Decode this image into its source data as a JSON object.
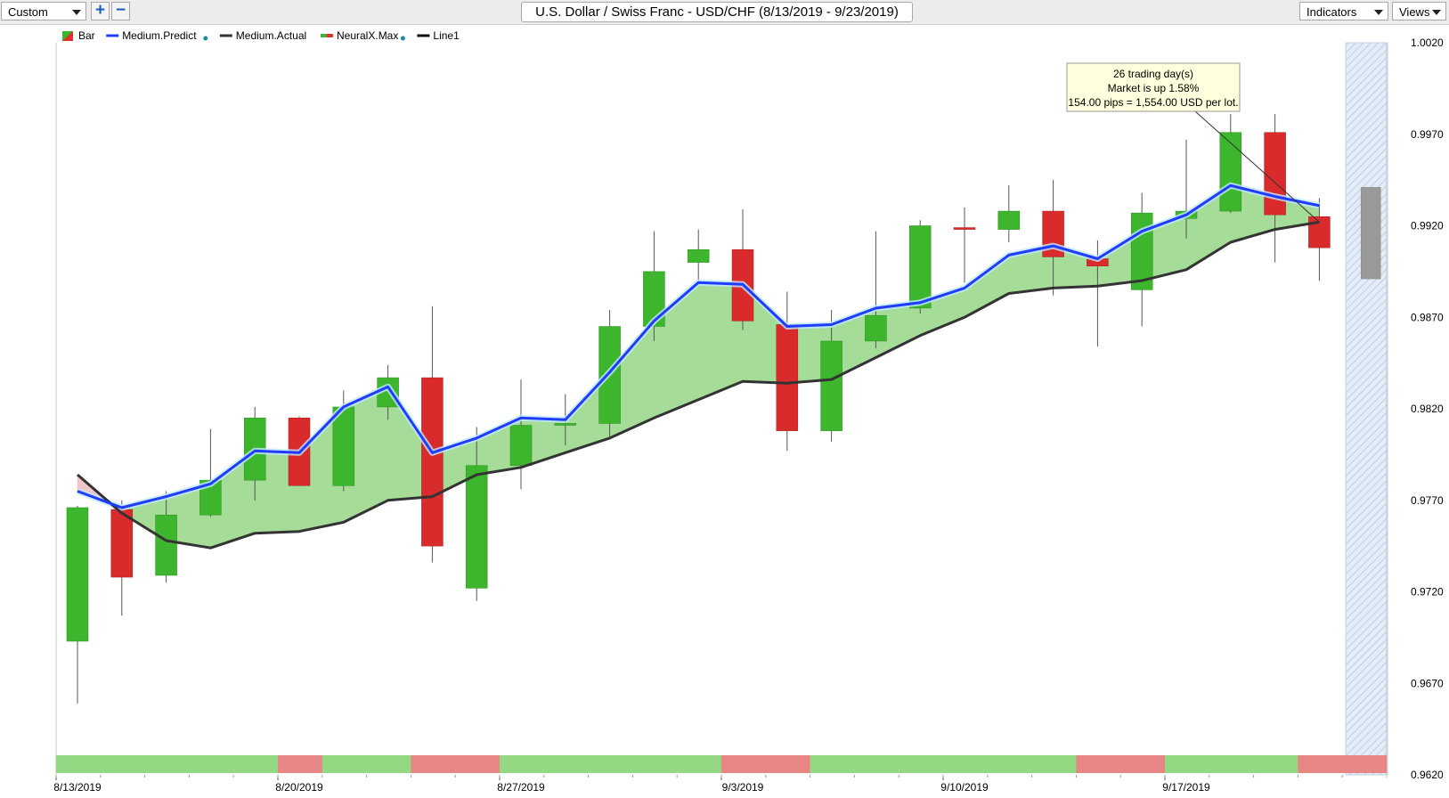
{
  "toolbar": {
    "period_select": "Custom",
    "zoom_in_label": "+",
    "zoom_out_label": "−",
    "title": "U.S. Dollar / Swiss Franc - USD/CHF (8/13/2019 - 9/23/2019)",
    "indicators_label": "Indicators",
    "views_label": "Views"
  },
  "legend": [
    {
      "label": "Bar",
      "color": "#e03030"
    },
    {
      "label": "Medium.Predict",
      "color": "#1f3cff"
    },
    {
      "label": "Medium.Actual",
      "color": "#333333"
    },
    {
      "label": "NeuralX.Max",
      "color": "#e03030"
    },
    {
      "label": "Line1",
      "color": "#111111"
    }
  ],
  "annotation": {
    "line1": "26 trading day(s)",
    "line2": "Market is up 1.58%",
    "line3": "154.00 pips = 1,554.00 USD per lot."
  },
  "chart_data": {
    "type": "candlestick",
    "ylim": [
      0.962,
      1.002
    ],
    "y_ticks": [
      "1.0020",
      "0.9970",
      "0.9920",
      "0.9870",
      "0.9820",
      "0.9770",
      "0.9720",
      "0.9670",
      "0.9620"
    ],
    "x_labels": [
      {
        "index": 0,
        "label": "8/13/2019"
      },
      {
        "index": 5,
        "label": "8/20/2019"
      },
      {
        "index": 10,
        "label": "8/27/2019"
      },
      {
        "index": 15,
        "label": "9/3/2019"
      },
      {
        "index": 20,
        "label": "9/10/2019"
      },
      {
        "index": 25,
        "label": "9/17/2019"
      }
    ],
    "colors": {
      "up": "#3db52c",
      "down": "#d92b2b",
      "band": "#a5dc97",
      "band_neg": "#f0c6c6",
      "predict": "#1f3cff",
      "actual": "#333333",
      "next_day": "#999999"
    },
    "candles": [
      {
        "date": "8/13/2019",
        "open": 0.9693,
        "high": 0.9767,
        "low": 0.9659,
        "close": 0.9766
      },
      {
        "date": "8/14/2019",
        "open": 0.9765,
        "high": 0.977,
        "low": 0.9707,
        "close": 0.9728
      },
      {
        "date": "8/15/2019",
        "open": 0.9729,
        "high": 0.9775,
        "low": 0.9725,
        "close": 0.9762
      },
      {
        "date": "8/16/2019",
        "open": 0.9762,
        "high": 0.9809,
        "low": 0.9761,
        "close": 0.9781
      },
      {
        "date": "8/19/2019",
        "open": 0.9781,
        "high": 0.9821,
        "low": 0.977,
        "close": 0.9815
      },
      {
        "date": "8/20/2019",
        "open": 0.9815,
        "high": 0.9816,
        "low": 0.9778,
        "close": 0.9778
      },
      {
        "date": "8/21/2019",
        "open": 0.9778,
        "high": 0.983,
        "low": 0.9775,
        "close": 0.9821
      },
      {
        "date": "8/22/2019",
        "open": 0.9821,
        "high": 0.9844,
        "low": 0.9814,
        "close": 0.9837
      },
      {
        "date": "8/23/2019",
        "open": 0.9837,
        "high": 0.9876,
        "low": 0.9736,
        "close": 0.9745
      },
      {
        "date": "8/26/2019",
        "open": 0.9722,
        "high": 0.981,
        "low": 0.9715,
        "close": 0.9789
      },
      {
        "date": "8/27/2019",
        "open": 0.9789,
        "high": 0.9836,
        "low": 0.9776,
        "close": 0.9811
      },
      {
        "date": "8/28/2019",
        "open": 0.9811,
        "high": 0.9828,
        "low": 0.98,
        "close": 0.9812
      },
      {
        "date": "8/29/2019",
        "open": 0.9812,
        "high": 0.9874,
        "low": 0.9805,
        "close": 0.9865
      },
      {
        "date": "8/30/2019",
        "open": 0.9865,
        "high": 0.9917,
        "low": 0.9857,
        "close": 0.9895
      },
      {
        "date": "9/2/2019",
        "open": 0.99,
        "high": 0.9918,
        "low": 0.989,
        "close": 0.9907
      },
      {
        "date": "9/3/2019",
        "open": 0.9907,
        "high": 0.9929,
        "low": 0.9863,
        "close": 0.9868
      },
      {
        "date": "9/4/2019",
        "open": 0.9866,
        "high": 0.9884,
        "low": 0.9797,
        "close": 0.9808
      },
      {
        "date": "9/5/2019",
        "open": 0.9808,
        "high": 0.9874,
        "low": 0.9802,
        "close": 0.9857
      },
      {
        "date": "9/6/2019",
        "open": 0.9857,
        "high": 0.9917,
        "low": 0.9853,
        "close": 0.9871
      },
      {
        "date": "9/9/2019",
        "open": 0.9875,
        "high": 0.9923,
        "low": 0.9872,
        "close": 0.992
      },
      {
        "date": "9/10/2019",
        "open": 0.9919,
        "high": 0.993,
        "low": 0.9889,
        "close": 0.9918
      },
      {
        "date": "9/11/2019",
        "open": 0.9918,
        "high": 0.9942,
        "low": 0.9911,
        "close": 0.9928
      },
      {
        "date": "9/12/2019",
        "open": 0.9928,
        "high": 0.9945,
        "low": 0.9882,
        "close": 0.9903
      },
      {
        "date": "9/13/2019",
        "open": 0.9902,
        "high": 0.9912,
        "low": 0.9854,
        "close": 0.9898
      },
      {
        "date": "9/16/2019",
        "open": 0.9885,
        "high": 0.9938,
        "low": 0.9865,
        "close": 0.9927
      },
      {
        "date": "9/17/2019",
        "open": 0.9924,
        "high": 0.9967,
        "low": 0.9913,
        "close": 0.9928
      },
      {
        "date": "9/18/2019",
        "open": 0.9928,
        "high": 0.9981,
        "low": 0.9927,
        "close": 0.9971
      },
      {
        "date": "9/19/2019",
        "open": 0.9971,
        "high": 0.9981,
        "low": 0.99,
        "close": 0.9926
      },
      {
        "date": "9/20/2019",
        "open": 0.9925,
        "high": 0.9935,
        "low": 0.989,
        "close": 0.9908
      }
    ],
    "next_day_range": {
      "high": 0.9941,
      "low": 0.9891
    },
    "series": [
      {
        "name": "Medium.Predict",
        "values": [
          0.9775,
          0.9766,
          0.9772,
          0.9779,
          0.9797,
          0.9796,
          0.9821,
          0.9832,
          0.9796,
          0.9804,
          0.9815,
          0.9814,
          0.984,
          0.9868,
          0.9889,
          0.9888,
          0.9865,
          0.9866,
          0.9875,
          0.9878,
          0.9886,
          0.9904,
          0.9909,
          0.9902,
          0.9917,
          0.9926,
          0.9942,
          0.9936,
          0.9931
        ]
      },
      {
        "name": "Medium.Actual",
        "values": [
          0.9784,
          0.9763,
          0.9748,
          0.9744,
          0.9752,
          0.9753,
          0.9758,
          0.977,
          0.9772,
          0.9784,
          0.9788,
          0.9796,
          0.9804,
          0.9815,
          0.9825,
          0.9835,
          0.9834,
          0.9836,
          0.9848,
          0.986,
          0.987,
          0.9883,
          0.9886,
          0.9887,
          0.989,
          0.9896,
          0.9911,
          0.9918,
          0.9922
        ]
      }
    ],
    "signal_strip": [
      "green",
      "green",
      "green",
      "green",
      "green",
      "red",
      "green",
      "green",
      "red",
      "red",
      "green",
      "green",
      "green",
      "green",
      "green",
      "red",
      "red",
      "green",
      "green",
      "green",
      "green",
      "green",
      "green",
      "red",
      "red",
      "green",
      "green",
      "green",
      "red",
      "red"
    ]
  }
}
